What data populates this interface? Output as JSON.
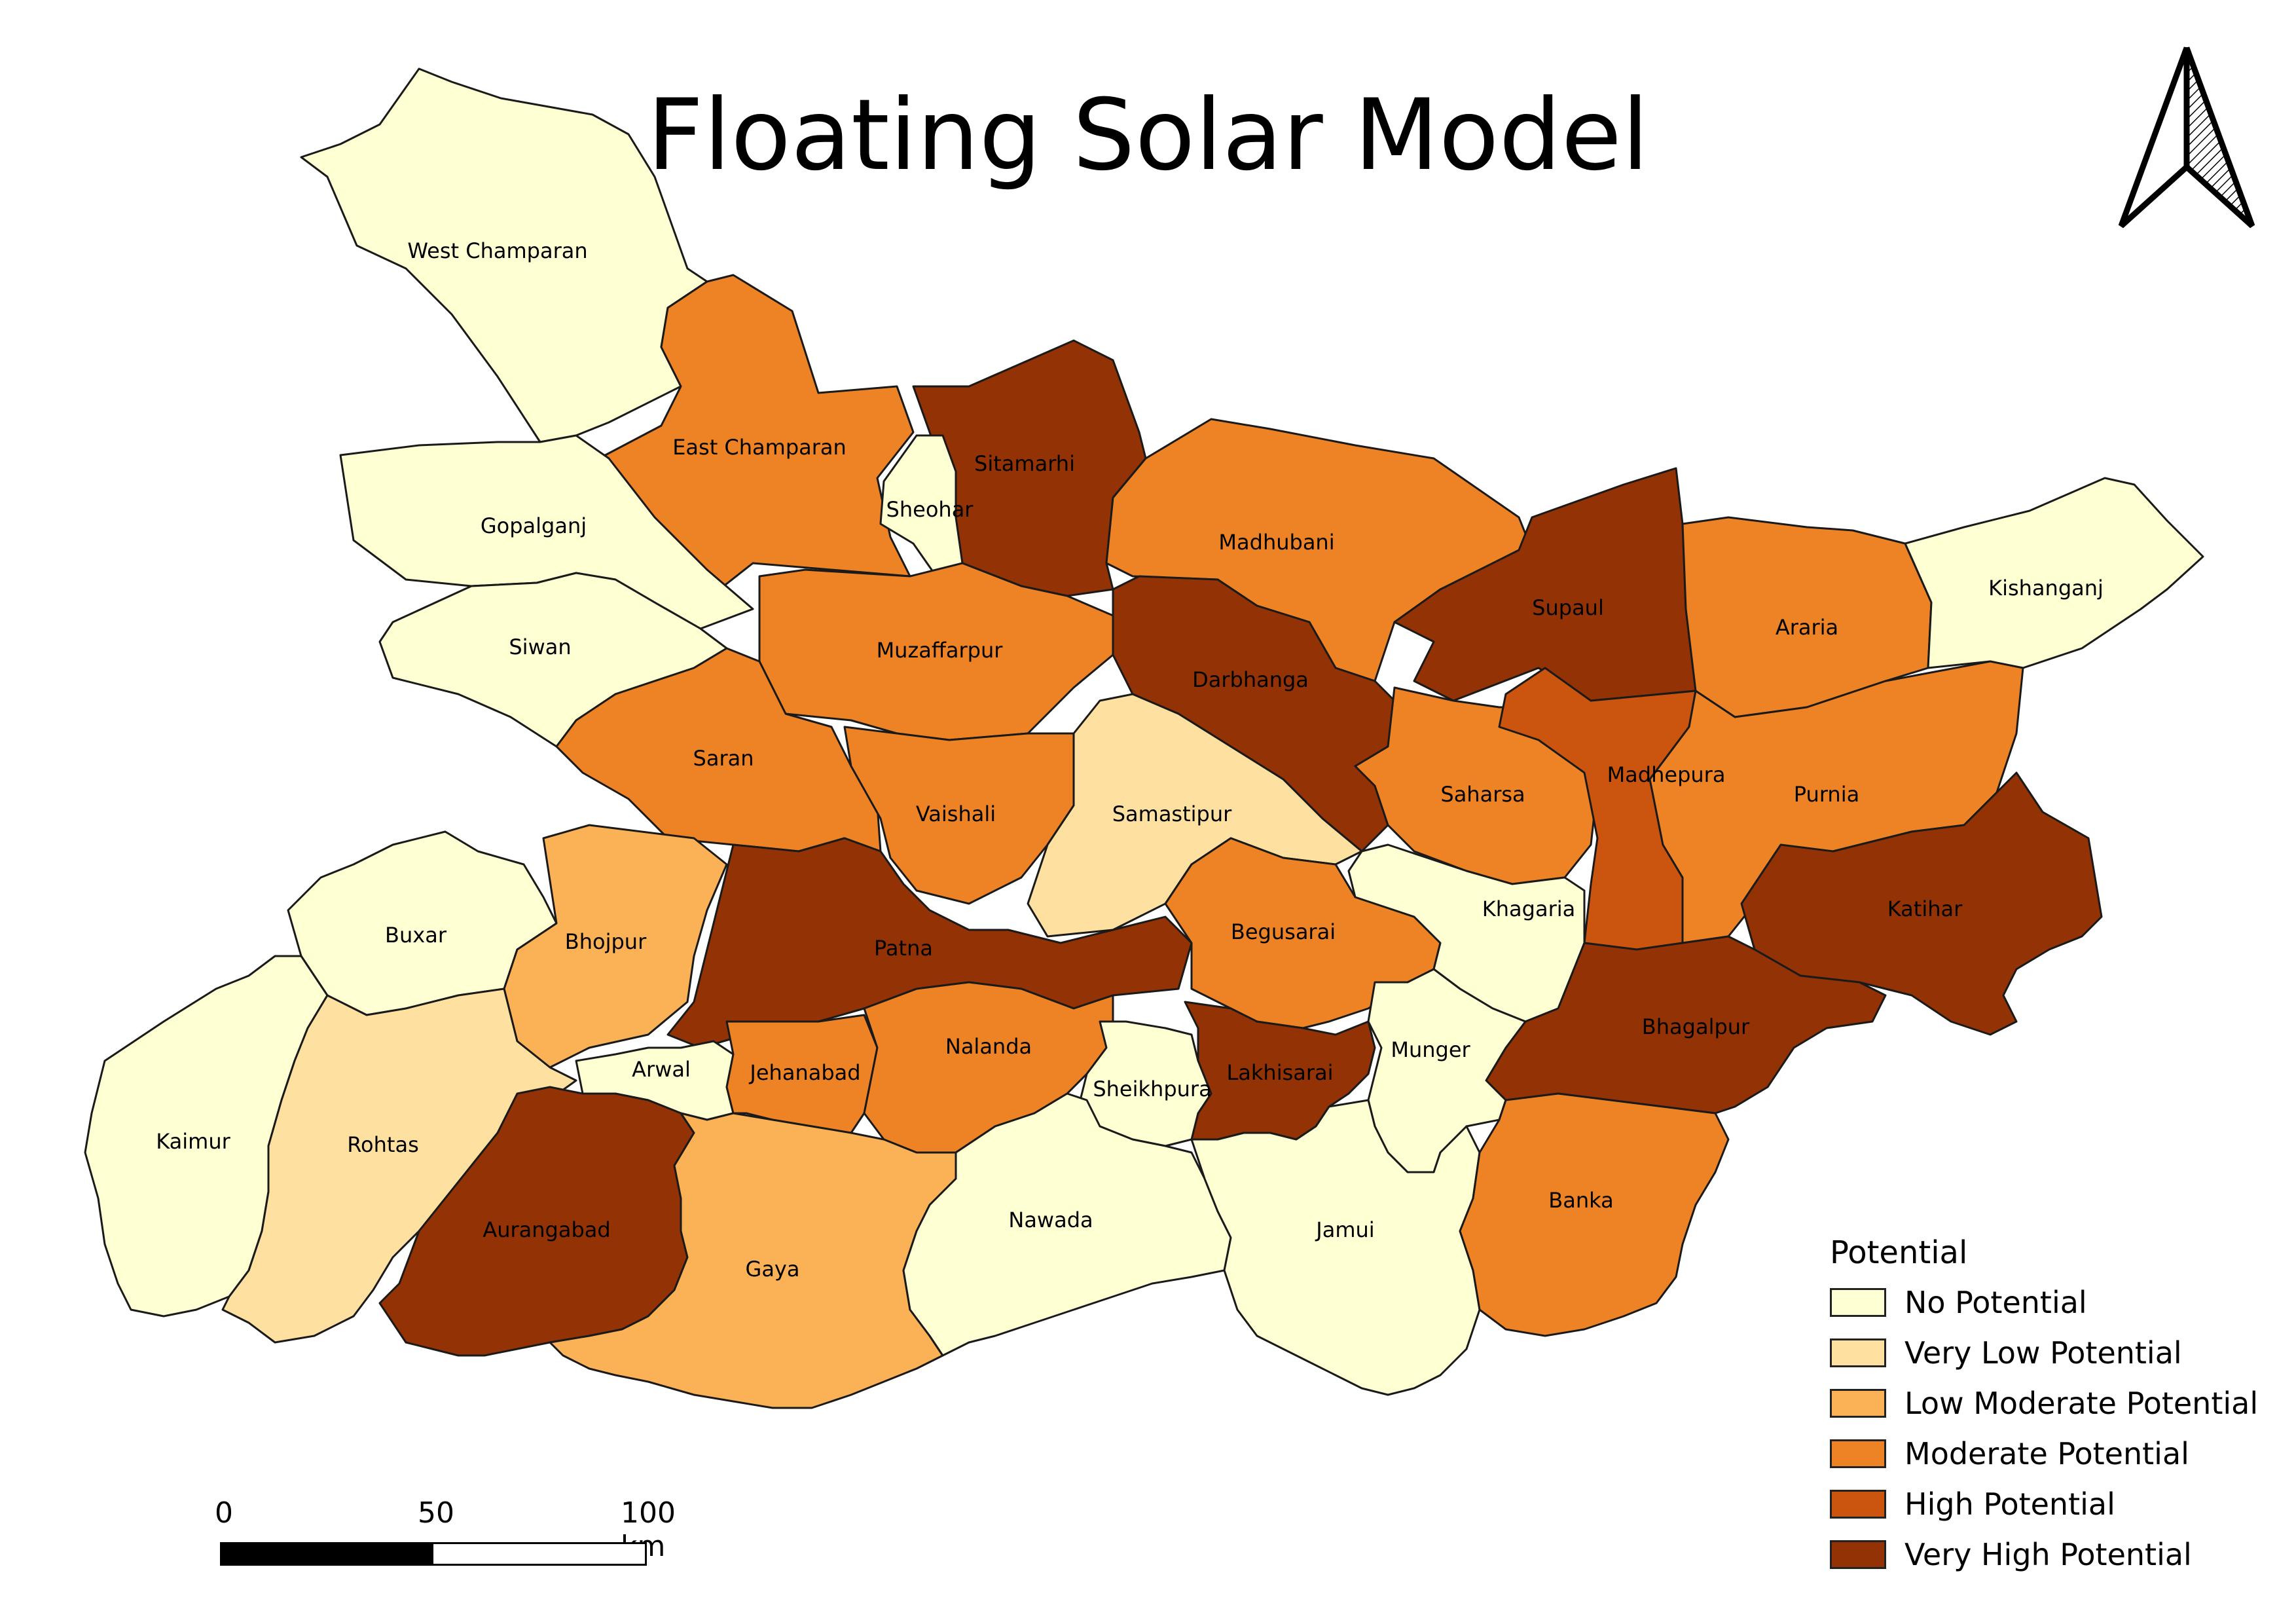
{
  "title": "Floating Solar Model",
  "legend": {
    "title": "Potential",
    "items": [
      {
        "label": "No Potential",
        "color": "#FFFFD4"
      },
      {
        "label": "Very Low Potential",
        "color": "#FEE0A1"
      },
      {
        "label": "Low Moderate Potential",
        "color": "#FBB155"
      },
      {
        "label": "Moderate Potential",
        "color": "#EE8326"
      },
      {
        "label": "High Potential",
        "color": "#CB550F"
      },
      {
        "label": "Very High Potential",
        "color": "#933205"
      }
    ]
  },
  "scale_bar": {
    "ticks": [
      "0",
      "50",
      "100 km"
    ]
  },
  "north_arrow": {
    "icon": "north-arrow-icon"
  },
  "districts": [
    {
      "name": "West Champaran",
      "class": 0
    },
    {
      "name": "East Champaran",
      "class": 3
    },
    {
      "name": "Sitamarhi",
      "class": 5
    },
    {
      "name": "Sheohar",
      "class": 0
    },
    {
      "name": "Madhubani",
      "class": 3
    },
    {
      "name": "Supaul",
      "class": 5
    },
    {
      "name": "Araria",
      "class": 3
    },
    {
      "name": "Kishanganj",
      "class": 0
    },
    {
      "name": "Gopalganj",
      "class": 0
    },
    {
      "name": "Siwan",
      "class": 0
    },
    {
      "name": "Muzaffarpur",
      "class": 3
    },
    {
      "name": "Darbhanga",
      "class": 5
    },
    {
      "name": "Saran",
      "class": 3
    },
    {
      "name": "Vaishali",
      "class": 3
    },
    {
      "name": "Samastipur",
      "class": 1
    },
    {
      "name": "Saharsa",
      "class": 3
    },
    {
      "name": "Madhepura",
      "class": 4
    },
    {
      "name": "Purnia",
      "class": 3
    },
    {
      "name": "Katihar",
      "class": 5
    },
    {
      "name": "Buxar",
      "class": 0
    },
    {
      "name": "Bhojpur",
      "class": 2
    },
    {
      "name": "Patna",
      "class": 5
    },
    {
      "name": "Begusarai",
      "class": 3
    },
    {
      "name": "Khagaria",
      "class": 0
    },
    {
      "name": "Bhagalpur",
      "class": 5
    },
    {
      "name": "Kaimur",
      "class": 0
    },
    {
      "name": "Rohtas",
      "class": 1
    },
    {
      "name": "Arwal",
      "class": 0
    },
    {
      "name": "Jehanabad",
      "class": 3
    },
    {
      "name": "Nalanda",
      "class": 3
    },
    {
      "name": "Lakhisarai",
      "class": 5
    },
    {
      "name": "Sheikhpura",
      "class": 0
    },
    {
      "name": "Munger",
      "class": 0
    },
    {
      "name": "Aurangabad",
      "class": 5
    },
    {
      "name": "Gaya",
      "class": 2
    },
    {
      "name": "Nawada",
      "class": 0
    },
    {
      "name": "Jamui",
      "class": 0
    },
    {
      "name": "Banka",
      "class": 3
    }
  ]
}
